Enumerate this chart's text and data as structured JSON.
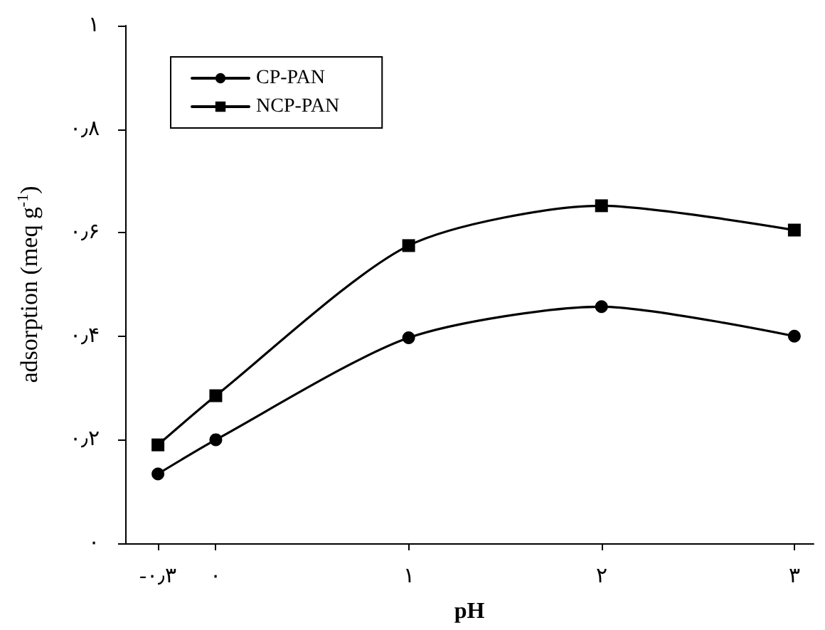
{
  "chart_data": {
    "type": "line",
    "xlabel": "pH",
    "ylabel": "adsorption (meq g$^{-1}$)",
    "x": [
      -0.3,
      0,
      1,
      2,
      3
    ],
    "series": [
      {
        "name": "CP-PAN",
        "color": "#000000",
        "marker": "circle",
        "values": [
          0.134,
          0.2,
          0.397,
          0.457,
          0.4
        ]
      },
      {
        "name": "NCP-PAN",
        "color": "#000000",
        "marker": "square",
        "values": [
          0.19,
          0.285,
          0.575,
          0.652,
          0.605
        ]
      }
    ],
    "xlim": [
      -0.47,
      3.1
    ],
    "xticks": [
      {
        "value": -0.3,
        "label": "-۰٫۳"
      },
      {
        "value": 0,
        "label": "۰"
      },
      {
        "value": 1,
        "label": "۱"
      },
      {
        "value": 2,
        "label": "۲"
      },
      {
        "value": 3,
        "label": "۳"
      }
    ],
    "ylim": [
      0,
      1
    ],
    "yticks": [
      {
        "value": 0,
        "label": "۰"
      },
      {
        "value": 0.2,
        "label": "۰٫۲"
      },
      {
        "value": 0.4,
        "label": "۰٫۴"
      },
      {
        "value": 0.6,
        "label": "۰٫۶"
      },
      {
        "value": 0.8,
        "label": "۰٫۸"
      },
      {
        "value": 1,
        "label": "۱"
      }
    ],
    "grid": false,
    "legend": "top left",
    "line_style": "solid"
  }
}
